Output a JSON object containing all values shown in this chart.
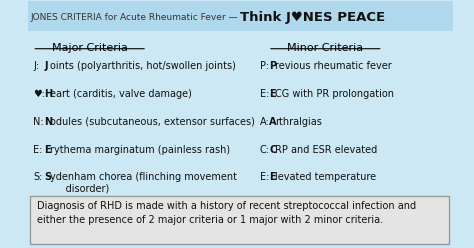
{
  "bg_color": "#cce8f4",
  "header_bg": "#b0d8ec",
  "box_bg": "#e4e4e4",
  "header_text_small": "JONES CRITERIA for Acute Rheumatic Fever — ",
  "header_text_large": "Think J♥NES PEACE",
  "major_title": "Major Criteria",
  "minor_title": "Minor Criteria",
  "major_items": [
    [
      "J:",
      "J",
      "oints (polyarthritis, hot/swollen joints)"
    ],
    [
      "♥:",
      "H",
      "eart (carditis, valve damage)"
    ],
    [
      "N:",
      "N",
      "odules (subcutaneous, extensor surfaces)"
    ],
    [
      "E:",
      "E",
      "rythema marginatum (painless rash)"
    ],
    [
      "S:",
      "S",
      "ydenham chorea (flinching movement\n     disorder)"
    ]
  ],
  "minor_items": [
    [
      "P:",
      "P",
      "revious rheumatic fever"
    ],
    [
      "E:",
      "E",
      "CG with PR prolongation"
    ],
    [
      "A:",
      "A",
      "rthralgias"
    ],
    [
      "C:",
      "C",
      "RP and ESR elevated"
    ],
    [
      "E:",
      "E",
      "levated temperature"
    ]
  ],
  "diagnosis_text": "Diagnosis of RHD is made with a history of recent streptococcal infection and\neither the presence of 2 major criteria or 1 major with 2 minor criteria.",
  "header_small_fontsize": 6.5,
  "header_large_fontsize": 9.5,
  "col_title_fontsize": 8.0,
  "item_fontsize": 7.0,
  "diag_fontsize": 7.0
}
